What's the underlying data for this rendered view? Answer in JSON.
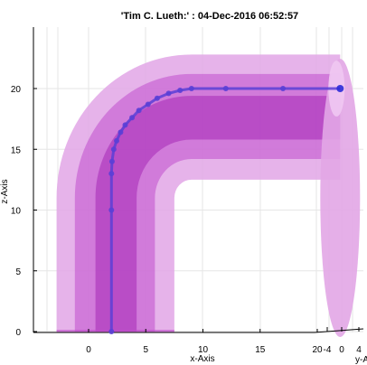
{
  "chart_data": {
    "type": "line",
    "title": "'Tim C. Lueth:' : 04-Dec-2016 06:52:57",
    "xlabel": "x-Axis",
    "ylabel": "z-Axis",
    "zlabel": "y-Axis",
    "x_ticks": [
      "0",
      "5",
      "10",
      "15",
      "20"
    ],
    "y_ticks": [
      "0",
      "5",
      "10",
      "15",
      "20"
    ],
    "extra_ticks": [
      "-4",
      "0",
      "4"
    ],
    "xlim": [
      -5,
      23
    ],
    "ylim": [
      0,
      25
    ],
    "grid": true,
    "colors": {
      "pipe": "#c04ccc",
      "pipe_light": "#e2a6e6",
      "pipe_dark": "#a628b6",
      "path": "#5b3fd6",
      "endpoint": "#2b2bd8"
    },
    "series": [
      {
        "x": [
          2,
          2,
          2,
          2.05,
          2.2,
          2.45,
          2.8,
          3.2,
          3.8,
          4.4,
          5.2,
          6,
          7,
          8,
          9,
          12,
          17,
          22
        ],
        "y": [
          0,
          10,
          13,
          14,
          15,
          15.7,
          16.4,
          17,
          17.6,
          18.2,
          18.7,
          19.2,
          19.6,
          19.85,
          20,
          20,
          20,
          20
        ]
      }
    ]
  }
}
